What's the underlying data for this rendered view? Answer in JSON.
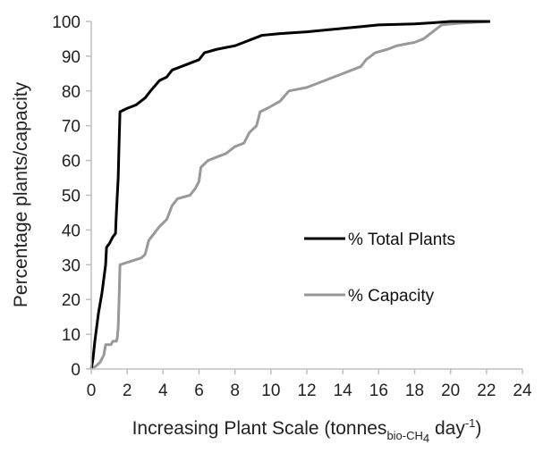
{
  "chart_data": {
    "type": "line",
    "title": "",
    "xlabel": {
      "main": "Increasing Plant Scale (tonnes",
      "subscript": "bio-CH",
      "subscript_digit": "4",
      "after": " day",
      "superscript": "-1",
      "close": ")"
    },
    "ylabel": "Percentage plants/capacity",
    "xlim": [
      0,
      24
    ],
    "ylim": [
      0,
      100
    ],
    "x_ticks": [
      "0",
      "2",
      "4",
      "6",
      "8",
      "10",
      "12",
      "14",
      "16",
      "18",
      "20",
      "22",
      "24"
    ],
    "y_ticks": [
      "0",
      "10",
      "20",
      "30",
      "40",
      "50",
      "60",
      "70",
      "80",
      "90",
      "100"
    ],
    "grid": false,
    "legend_position": "center-right",
    "series": [
      {
        "name": "% Total Plants",
        "color": "#000000",
        "points": [
          [
            0,
            0
          ],
          [
            0.1,
            3
          ],
          [
            0.2,
            8
          ],
          [
            0.3,
            12
          ],
          [
            0.4,
            16
          ],
          [
            0.5,
            19
          ],
          [
            0.6,
            22
          ],
          [
            0.7,
            26
          ],
          [
            0.8,
            30
          ],
          [
            0.85,
            35
          ],
          [
            1.0,
            36
          ],
          [
            1.1,
            37
          ],
          [
            1.2,
            38
          ],
          [
            1.35,
            39
          ],
          [
            1.4,
            45
          ],
          [
            1.5,
            55
          ],
          [
            1.55,
            65
          ],
          [
            1.6,
            74
          ],
          [
            2.0,
            75
          ],
          [
            2.5,
            76
          ],
          [
            3.0,
            78
          ],
          [
            3.3,
            80
          ],
          [
            3.8,
            83
          ],
          [
            4.2,
            84
          ],
          [
            4.5,
            86
          ],
          [
            5.0,
            87
          ],
          [
            5.5,
            88
          ],
          [
            6.0,
            89
          ],
          [
            6.3,
            91
          ],
          [
            7.0,
            92
          ],
          [
            8.0,
            93
          ],
          [
            8.5,
            94
          ],
          [
            9.0,
            95
          ],
          [
            9.5,
            96
          ],
          [
            10.5,
            96.5
          ],
          [
            12.0,
            97
          ],
          [
            14.0,
            98
          ],
          [
            15.0,
            98.5
          ],
          [
            16.0,
            99
          ],
          [
            18.0,
            99.3
          ],
          [
            19.0,
            99.6
          ],
          [
            20.0,
            100
          ],
          [
            22.2,
            100
          ]
        ]
      },
      {
        "name": "% Capacity",
        "color": "#999999",
        "points": [
          [
            0,
            0
          ],
          [
            0.3,
            1
          ],
          [
            0.5,
            2
          ],
          [
            0.7,
            4
          ],
          [
            0.8,
            7
          ],
          [
            1.1,
            7
          ],
          [
            1.2,
            8
          ],
          [
            1.4,
            8
          ],
          [
            1.45,
            9
          ],
          [
            1.5,
            12
          ],
          [
            1.55,
            20
          ],
          [
            1.6,
            30
          ],
          [
            2.2,
            31
          ],
          [
            2.8,
            32
          ],
          [
            3.0,
            33
          ],
          [
            3.2,
            37
          ],
          [
            3.5,
            39
          ],
          [
            3.8,
            41
          ],
          [
            4.2,
            43
          ],
          [
            4.5,
            47
          ],
          [
            4.8,
            49
          ],
          [
            5.5,
            50
          ],
          [
            5.8,
            52
          ],
          [
            6.0,
            54
          ],
          [
            6.1,
            58
          ],
          [
            6.5,
            60
          ],
          [
            7.0,
            61
          ],
          [
            7.5,
            62
          ],
          [
            8.0,
            64
          ],
          [
            8.5,
            65
          ],
          [
            8.8,
            68
          ],
          [
            9.2,
            70
          ],
          [
            9.4,
            74
          ],
          [
            9.8,
            75
          ],
          [
            10.5,
            77
          ],
          [
            11.0,
            80
          ],
          [
            12.0,
            81
          ],
          [
            13.0,
            83
          ],
          [
            14.0,
            85
          ],
          [
            15.0,
            87
          ],
          [
            15.3,
            89
          ],
          [
            15.8,
            91
          ],
          [
            16.5,
            92
          ],
          [
            17.0,
            93
          ],
          [
            18.0,
            94
          ],
          [
            18.5,
            95
          ],
          [
            19.0,
            97
          ],
          [
            19.5,
            99
          ],
          [
            20.5,
            99.5
          ],
          [
            22.2,
            100
          ]
        ]
      }
    ]
  }
}
